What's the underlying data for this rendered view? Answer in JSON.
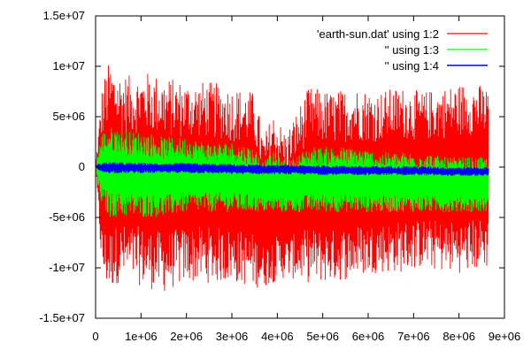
{
  "chart_data": {
    "type": "line",
    "title": "",
    "xlabel": "",
    "ylabel": "",
    "xlim": [
      0,
      9000000
    ],
    "ylim": [
      -15000000,
      15000000
    ],
    "x_ticks": [
      0,
      1000000,
      2000000,
      3000000,
      4000000,
      5000000,
      6000000,
      7000000,
      8000000,
      9000000
    ],
    "x_tick_labels": [
      "0",
      "1e+06",
      "2e+06",
      "3e+06",
      "4e+06",
      "5e+06",
      "6e+06",
      "7e+06",
      "8e+06",
      "9e+06"
    ],
    "y_ticks": [
      -15000000,
      -10000000,
      -5000000,
      0,
      5000000,
      10000000,
      15000000
    ],
    "y_tick_labels": [
      "-1.5e+07",
      "-1e+07",
      "-5e+06",
      "0",
      "5e+06",
      "1e+07",
      "1.5e+07"
    ],
    "grid": false,
    "legend_position": "top-right",
    "x_end": 8650000,
    "series": [
      {
        "name": "'earth-sun.dat' using 1:2",
        "color": "#ff0000",
        "envelope_x": [
          0,
          50000,
          150000,
          300000,
          500000,
          800000,
          1100000,
          1500000,
          2000000,
          2500000,
          3000000,
          3500000,
          3700000,
          3900000,
          4200000,
          4700000,
          5200000,
          5700000,
          6200000,
          6700000,
          7200000,
          7700000,
          8200000,
          8650000
        ],
        "upper": [
          0,
          3000000,
          8500000,
          10500000,
          9500000,
          9000000,
          9500000,
          9000000,
          8500000,
          8500000,
          8000000,
          7500000,
          3000000,
          5500000,
          3500000,
          8000000,
          7500000,
          8000000,
          7500000,
          8000000,
          7500000,
          8000000,
          8500000,
          8000000
        ],
        "lower": [
          0,
          -4000000,
          -11500000,
          -12500000,
          -11500000,
          -11500000,
          -12000000,
          -12500000,
          -11500000,
          -11500000,
          -11500000,
          -12000000,
          -12000000,
          -11500000,
          -11000000,
          -11500000,
          -11500000,
          -11000000,
          -10500000,
          -10500000,
          -10000000,
          -10500000,
          -10500000,
          -10000000
        ]
      },
      {
        "name": "'' using 1:3",
        "color": "#00ff00",
        "envelope_x": [
          0,
          50000,
          150000,
          300000,
          500000,
          800000,
          1100000,
          1500000,
          2000000,
          2500000,
          3000000,
          3500000,
          3700000,
          3900000,
          4200000,
          4700000,
          5200000,
          5700000,
          6200000,
          6700000,
          7200000,
          7700000,
          8200000,
          8650000
        ],
        "upper": [
          0,
          1500000,
          3500000,
          4000000,
          4000000,
          3500000,
          3500000,
          3000000,
          3000000,
          2500000,
          2500000,
          2000000,
          500000,
          1500000,
          500000,
          2000000,
          2000000,
          2000000,
          1500000,
          1500000,
          1500000,
          1000000,
          1000000,
          1000000
        ],
        "lower": [
          0,
          -2000000,
          -4000000,
          -5000000,
          -5000000,
          -5000000,
          -5000000,
          -5000000,
          -4500000,
          -4500000,
          -4500000,
          -4500000,
          -4500000,
          -4500000,
          -4500000,
          -4500000,
          -4500000,
          -4500000,
          -4500000,
          -4500000,
          -4500000,
          -4500000,
          -4500000,
          -4500000
        ]
      },
      {
        "name": "'' using 1:4",
        "color": "#0000ff",
        "envelope_x": [
          0,
          50000,
          150000,
          300000,
          1000000,
          2000000,
          3000000,
          4000000,
          5000000,
          6000000,
          7000000,
          8000000,
          8650000
        ],
        "upper": [
          0,
          300000,
          500000,
          500000,
          400000,
          400000,
          300000,
          200000,
          200000,
          100000,
          100000,
          0,
          0
        ],
        "lower": [
          0,
          -300000,
          -600000,
          -600000,
          -600000,
          -600000,
          -700000,
          -700000,
          -800000,
          -800000,
          -800000,
          -900000,
          -900000
        ]
      }
    ]
  }
}
